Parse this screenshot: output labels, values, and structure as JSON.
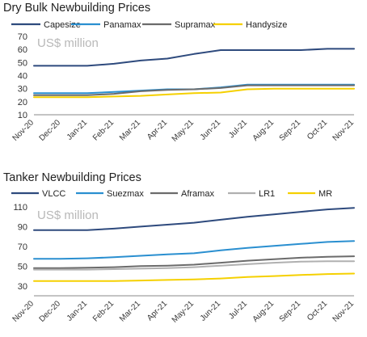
{
  "chart_data": [
    {
      "type": "line",
      "title": "Dry Bulk Newbuilding Prices",
      "annotation": "US$ million",
      "xlabel": "",
      "ylabel": "",
      "ylim": [
        10,
        70
      ],
      "yticks": [
        10,
        20,
        30,
        40,
        50,
        60,
        70
      ],
      "grid": false,
      "legend": "top",
      "x": [
        "Nov-20",
        "Dec-20",
        "Jan-21",
        "Feb-21",
        "Mar-21",
        "Apr-21",
        "May-21",
        "Jun-21",
        "Jul-21",
        "Aug-21",
        "Sep-21",
        "Oct-21",
        "Nov-21"
      ],
      "series": [
        {
          "name": "Capesize",
          "color": "#2e4a7d",
          "values": [
            47.5,
            47.5,
            47.5,
            49.0,
            51.5,
            53.0,
            56.5,
            59.5,
            59.5,
            59.5,
            59.5,
            60.5,
            60.5
          ]
        },
        {
          "name": "Panamax",
          "color": "#2a8fd0",
          "values": [
            26.5,
            26.5,
            26.5,
            27.5,
            28.5,
            29.5,
            29.5,
            31.0,
            33.0,
            33.0,
            33.0,
            33.0,
            33.0
          ]
        },
        {
          "name": "Supramax",
          "color": "#6b6b6b",
          "values": [
            25.0,
            25.0,
            25.0,
            26.0,
            28.0,
            29.0,
            29.5,
            30.5,
            32.5,
            32.5,
            32.5,
            32.5,
            32.5
          ]
        },
        {
          "name": "Handysize",
          "color": "#f5d000",
          "values": [
            23.5,
            23.5,
            23.5,
            24.0,
            24.5,
            25.5,
            26.5,
            27.0,
            29.5,
            30.0,
            30.0,
            30.0,
            30.0
          ]
        }
      ]
    },
    {
      "type": "line",
      "title": "Tanker Newbuilding Prices",
      "annotation": "US$ million",
      "xlabel": "",
      "ylabel": "",
      "ylim": [
        20,
        110
      ],
      "yticks": [
        30,
        50,
        70,
        90,
        110
      ],
      "grid": false,
      "legend": "top",
      "x": [
        "Nov-20",
        "Dec-20",
        "Jan-21",
        "Feb-21",
        "Mar-21",
        "Apr-21",
        "May-21",
        "Jun-21",
        "Jul-21",
        "Aug-21",
        "Sep-21",
        "Oct-21",
        "Nov-21"
      ],
      "series": [
        {
          "name": "VLCC",
          "color": "#2e4a7d",
          "values": [
            86.5,
            86.5,
            86.5,
            88.0,
            90.0,
            92.0,
            94.0,
            97.0,
            100.0,
            102.5,
            105.0,
            107.5,
            109.0
          ]
        },
        {
          "name": "Suezmax",
          "color": "#2a8fd0",
          "values": [
            57.5,
            57.5,
            58.0,
            59.0,
            60.5,
            62.0,
            63.0,
            66.0,
            68.5,
            70.5,
            72.5,
            74.5,
            75.5
          ]
        },
        {
          "name": "Aframax",
          "color": "#6b6b6b",
          "values": [
            48.0,
            48.0,
            48.5,
            49.0,
            50.0,
            50.5,
            51.5,
            53.5,
            55.5,
            57.0,
            58.5,
            59.5,
            60.0
          ]
        },
        {
          "name": "LR1",
          "color": "#b0b0b0",
          "values": [
            46.5,
            46.5,
            46.5,
            47.0,
            47.5,
            48.0,
            49.0,
            50.5,
            52.0,
            53.5,
            54.5,
            55.0,
            55.0
          ]
        },
        {
          "name": "MR",
          "color": "#f5d000",
          "values": [
            35.0,
            35.0,
            35.0,
            35.0,
            35.5,
            36.0,
            36.5,
            37.5,
            39.0,
            40.0,
            41.0,
            42.0,
            42.5
          ]
        }
      ]
    }
  ]
}
